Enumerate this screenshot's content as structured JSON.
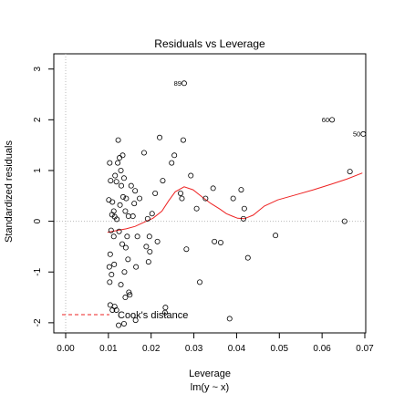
{
  "chart_data": {
    "type": "scatter",
    "title": "Residuals vs Leverage",
    "xlabel": "Leverage",
    "xlabel_sub": "lm(y ~ x)",
    "ylabel": "Standardized residuals",
    "xlim": [
      0.0,
      0.07
    ],
    "ylim": [
      -2.2,
      3.3
    ],
    "xticks": [
      "0.00",
      "0.01",
      "0.02",
      "0.03",
      "0.04",
      "0.05",
      "0.06",
      "0.07"
    ],
    "xtick_values": [
      0.0,
      0.01,
      0.02,
      0.03,
      0.04,
      0.05,
      0.06,
      0.07
    ],
    "yticks": [
      "-2",
      "-1",
      "0",
      "1",
      "2",
      "3"
    ],
    "ytick_values": [
      -2,
      -1,
      0,
      1,
      2,
      3
    ],
    "reference_lines": {
      "horizontal": 0,
      "vertical": 0
    },
    "points": [
      {
        "x": 0.0103,
        "y": 1.15
      },
      {
        "x": 0.0115,
        "y": 0.9
      },
      {
        "x": 0.0105,
        "y": 0.8
      },
      {
        "x": 0.0118,
        "y": 0.78
      },
      {
        "x": 0.0101,
        "y": 0.42
      },
      {
        "x": 0.0109,
        "y": 0.38
      },
      {
        "x": 0.0112,
        "y": 0.2
      },
      {
        "x": 0.0108,
        "y": 0.13
      },
      {
        "x": 0.0114,
        "y": 0.09
      },
      {
        "x": 0.0119,
        "y": 0.04
      },
      {
        "x": 0.0106,
        "y": -0.18
      },
      {
        "x": 0.0112,
        "y": -0.3
      },
      {
        "x": 0.0104,
        "y": -0.65
      },
      {
        "x": 0.0102,
        "y": -0.9
      },
      {
        "x": 0.0113,
        "y": -0.85
      },
      {
        "x": 0.0107,
        "y": -1.05
      },
      {
        "x": 0.0103,
        "y": -1.2
      },
      {
        "x": 0.0104,
        "y": -1.65
      },
      {
        "x": 0.0114,
        "y": -1.68
      },
      {
        "x": 0.0109,
        "y": -1.75
      },
      {
        "x": 0.0118,
        "y": -1.75
      },
      {
        "x": 0.0122,
        "y": 1.6
      },
      {
        "x": 0.0125,
        "y": 1.25
      },
      {
        "x": 0.0121,
        "y": 1.15
      },
      {
        "x": 0.0132,
        "y": 1.3
      },
      {
        "x": 0.0128,
        "y": 1.0
      },
      {
        "x": 0.0135,
        "y": 0.85
      },
      {
        "x": 0.0129,
        "y": 0.7
      },
      {
        "x": 0.0133,
        "y": 0.48
      },
      {
        "x": 0.0126,
        "y": 0.32
      },
      {
        "x": 0.014,
        "y": 0.45
      },
      {
        "x": 0.0138,
        "y": 0.2
      },
      {
        "x": 0.0145,
        "y": 0.1
      },
      {
        "x": 0.0124,
        "y": -0.2
      },
      {
        "x": 0.0131,
        "y": -0.45
      },
      {
        "x": 0.0139,
        "y": -0.52
      },
      {
        "x": 0.0142,
        "y": -0.3
      },
      {
        "x": 0.0144,
        "y": -0.75
      },
      {
        "x": 0.0136,
        "y": -1.0
      },
      {
        "x": 0.0128,
        "y": -1.25
      },
      {
        "x": 0.0138,
        "y": -1.5
      },
      {
        "x": 0.0148,
        "y": -1.45
      },
      {
        "x": 0.0135,
        "y": -2.02
      },
      {
        "x": 0.0123,
        "y": -2.05
      },
      {
        "x": 0.0146,
        "y": -1.4
      },
      {
        "x": 0.0151,
        "y": 0.7
      },
      {
        "x": 0.0155,
        "y": 0.1
      },
      {
        "x": 0.0158,
        "y": 0.35
      },
      {
        "x": 0.016,
        "y": 0.6
      },
      {
        "x": 0.0165,
        "y": -0.3
      },
      {
        "x": 0.017,
        "y": 0.45
      },
      {
        "x": 0.0162,
        "y": -0.9
      },
      {
        "x": 0.0161,
        "y": -1.95
      },
      {
        "x": 0.018,
        "y": 1.35
      },
      {
        "x": 0.0185,
        "y": -0.5
      },
      {
        "x": 0.0188,
        "y": 0.05
      },
      {
        "x": 0.0193,
        "y": -0.6
      },
      {
        "x": 0.0192,
        "y": -0.3
      },
      {
        "x": 0.019,
        "y": -0.8
      },
      {
        "x": 0.0198,
        "y": 0.15
      },
      {
        "x": 0.0205,
        "y": 0.55
      },
      {
        "x": 0.021,
        "y": -0.4
      },
      {
        "x": 0.0215,
        "y": 1.65
      },
      {
        "x": 0.0222,
        "y": 0.8
      },
      {
        "x": 0.0228,
        "y": -1.7
      },
      {
        "x": 0.0227,
        "y": -1.8
      },
      {
        "x": 0.0242,
        "y": 1.15
      },
      {
        "x": 0.0248,
        "y": 1.3
      },
      {
        "x": 0.0262,
        "y": 0.55
      },
      {
        "x": 0.0265,
        "y": 0.45
      },
      {
        "x": 0.0268,
        "y": 1.6
      },
      {
        "x": 0.0275,
        "y": -0.55
      },
      {
        "x": 0.0285,
        "y": 0.9
      },
      {
        "x": 0.0298,
        "y": 0.25
      },
      {
        "x": 0.0305,
        "y": -1.2
      },
      {
        "x": 0.0318,
        "y": 0.45
      },
      {
        "x": 0.0335,
        "y": 0.65
      },
      {
        "x": 0.0338,
        "y": -0.4
      },
      {
        "x": 0.0352,
        "y": -0.42
      },
      {
        "x": 0.0372,
        "y": -1.92
      },
      {
        "x": 0.038,
        "y": 0.45
      },
      {
        "x": 0.0398,
        "y": 0.62
      },
      {
        "x": 0.0403,
        "y": 0.05
      },
      {
        "x": 0.0405,
        "y": 0.25
      },
      {
        "x": 0.0413,
        "y": -0.72
      },
      {
        "x": 0.0475,
        "y": -0.28
      },
      {
        "x": 0.063,
        "y": 0.0
      },
      {
        "x": 0.0642,
        "y": 0.98
      },
      {
        "x": 0.027,
        "y": 2.72,
        "label": "89"
      },
      {
        "x": 0.0602,
        "y": 2.0,
        "label": "60"
      },
      {
        "x": 0.0672,
        "y": 1.72,
        "label": "50"
      }
    ],
    "smooth_line": [
      [
        0.0098,
        -0.22
      ],
      [
        0.012,
        -0.18
      ],
      [
        0.014,
        -0.15
      ],
      [
        0.016,
        -0.1
      ],
      [
        0.018,
        -0.02
      ],
      [
        0.02,
        0.06
      ],
      [
        0.022,
        0.2
      ],
      [
        0.0235,
        0.4
      ],
      [
        0.025,
        0.58
      ],
      [
        0.027,
        0.68
      ],
      [
        0.029,
        0.62
      ],
      [
        0.031,
        0.48
      ],
      [
        0.033,
        0.35
      ],
      [
        0.035,
        0.24
      ],
      [
        0.0365,
        0.15
      ],
      [
        0.0378,
        0.1
      ],
      [
        0.039,
        0.06
      ],
      [
        0.0405,
        0.05
      ],
      [
        0.0425,
        0.12
      ],
      [
        0.045,
        0.3
      ],
      [
        0.048,
        0.42
      ],
      [
        0.052,
        0.52
      ],
      [
        0.056,
        0.62
      ],
      [
        0.06,
        0.73
      ],
      [
        0.0635,
        0.83
      ],
      [
        0.067,
        0.95
      ]
    ],
    "smooth_line_color": "#ee2222",
    "legend": {
      "position": "bottom-left",
      "label": "Cook's distance",
      "color": "#ee2222"
    }
  }
}
